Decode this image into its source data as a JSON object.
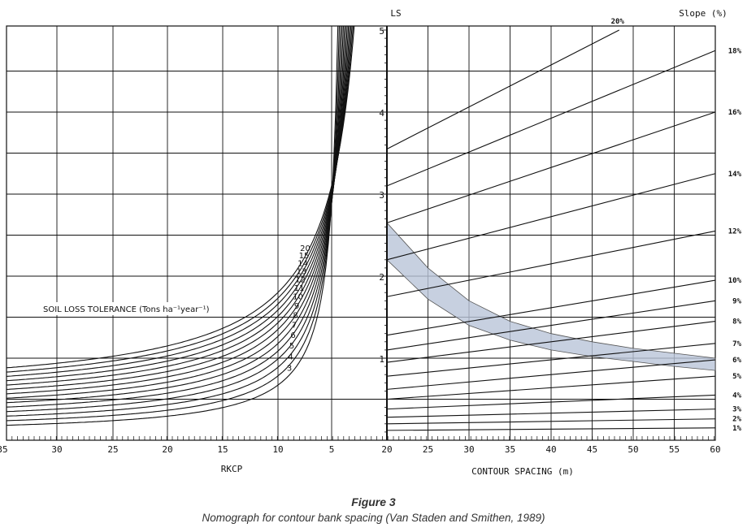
{
  "figure": {
    "title": "Figure 3",
    "subtitle": "Nomograph for contour bank spacing (Van Staden and Smithen, 1989)"
  },
  "chart_data": [
    {
      "panel": "left",
      "type": "line",
      "xlabel": "RKCP",
      "x_ticks": [
        "35",
        "30",
        "25",
        "20",
        "15",
        "10",
        "5",
        "20"
      ],
      "ylabel": "LS",
      "ylim": [
        0,
        5
      ],
      "y_ticks": [
        "1",
        "2",
        "3",
        "4",
        "5"
      ],
      "legend_title": "SOIL LOSS TOLERANCE (Tons ha⁻¹year⁻¹)",
      "series": [
        {
          "name": "3"
        },
        {
          "name": "4"
        },
        {
          "name": "5"
        },
        {
          "name": "6"
        },
        {
          "name": "7"
        },
        {
          "name": "8"
        },
        {
          "name": "9"
        },
        {
          "name": "10"
        },
        {
          "name": "11"
        },
        {
          "name": "12"
        },
        {
          "name": "13"
        },
        {
          "name": "14"
        },
        {
          "name": "15"
        },
        {
          "name": "20"
        }
      ],
      "grid": true
    },
    {
      "panel": "right",
      "type": "line",
      "xlabel": "CONTOUR SPACING (m)",
      "xlim": [
        20,
        60
      ],
      "x_ticks": [
        "20",
        "25",
        "30",
        "35",
        "40",
        "45",
        "50",
        "55",
        "60"
      ],
      "ylabel": "LS",
      "ylim": [
        0,
        5
      ],
      "legend_title": "Slope (%)",
      "series": [
        {
          "name": "1%",
          "ls_at_20": 0.12,
          "ls_at_60": 0.15
        },
        {
          "name": "2%",
          "ls_at_20": 0.2,
          "ls_at_60": 0.26
        },
        {
          "name": "3%",
          "ls_at_20": 0.28,
          "ls_at_60": 0.38
        },
        {
          "name": "4%",
          "ls_at_20": 0.38,
          "ls_at_60": 0.55
        },
        {
          "name": "5%",
          "ls_at_20": 0.5,
          "ls_at_60": 0.78
        },
        {
          "name": "6%",
          "ls_at_20": 0.62,
          "ls_at_60": 0.98
        },
        {
          "name": "7%",
          "ls_at_20": 0.78,
          "ls_at_60": 1.18
        },
        {
          "name": "8%",
          "ls_at_20": 0.95,
          "ls_at_60": 1.45
        },
        {
          "name": "9%",
          "ls_at_20": 1.1,
          "ls_at_60": 1.7
        },
        {
          "name": "10%",
          "ls_at_20": 1.28,
          "ls_at_60": 1.95
        },
        {
          "name": "12%",
          "ls_at_20": 1.75,
          "ls_at_60": 2.55
        },
        {
          "name": "14%",
          "ls_at_20": 2.2,
          "ls_at_60": 3.25
        },
        {
          "name": "16%",
          "ls_at_20": 2.65,
          "ls_at_60": 4.0
        },
        {
          "name": "18%",
          "ls_at_20": 3.1,
          "ls_at_60": 4.75
        },
        {
          "name": "20%",
          "ls_at_20": 3.55,
          "ls_at_60": 5.6
        }
      ],
      "shaded_band": {
        "x": [
          20,
          25,
          30,
          35,
          40,
          45,
          50,
          55,
          60
        ],
        "upper": [
          2.65,
          2.1,
          1.7,
          1.45,
          1.3,
          1.2,
          1.12,
          1.06,
          1.0
        ],
        "lower": [
          2.2,
          1.72,
          1.4,
          1.22,
          1.1,
          1.02,
          0.96,
          0.9,
          0.85
        ]
      },
      "grid": true
    }
  ],
  "colors": {
    "line": "#111111",
    "band": "#b9c4d8",
    "grid": "#111111"
  }
}
